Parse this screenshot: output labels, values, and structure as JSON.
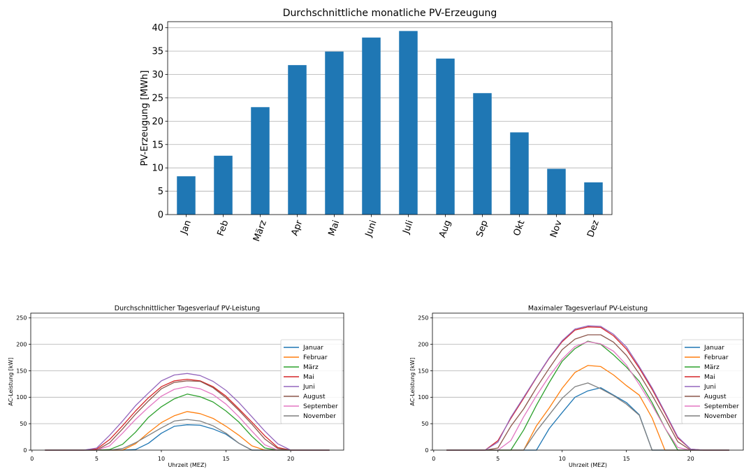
{
  "chart_data": [
    {
      "type": "bar",
      "title": "Durchschnittliche monatliche PV-Erzeugung",
      "ylabel": "PV-Erzeugung [MWh]",
      "categories": [
        "Jan",
        "Feb",
        "März",
        "Apr",
        "Mai",
        "Juni",
        "Juli",
        "Aug",
        "Sep",
        "Okt",
        "Nov",
        "Dez"
      ],
      "values": [
        8.2,
        12.6,
        23.0,
        32.0,
        34.9,
        37.9,
        39.3,
        33.4,
        26.0,
        17.6,
        9.8,
        6.9
      ],
      "ylim": [
        0,
        41.3
      ],
      "yticks": [
        0,
        5,
        10,
        15,
        20,
        25,
        30,
        35,
        40
      ],
      "grid": "horizontal",
      "color": "#1f77b4"
    },
    {
      "type": "line",
      "title": "Durchschnittlicher Tagesverlauf PV-Leistung",
      "xlabel": "Uhrzeit (MEZ)",
      "ylabel": "AC-Leistung [kW]",
      "x": [
        1,
        2,
        3,
        4,
        5,
        6,
        7,
        8,
        9,
        10,
        11,
        12,
        13,
        14,
        15,
        16,
        17,
        18,
        19,
        20,
        21,
        22,
        23
      ],
      "xlim": [
        -0.1,
        24.1
      ],
      "xticks": [
        0,
        5,
        10,
        15,
        20
      ],
      "ylim": [
        0,
        259
      ],
      "yticks": [
        0,
        50,
        100,
        150,
        200,
        250
      ],
      "grid": "horizontal",
      "legend": "center right",
      "series": [
        {
          "name": "Januar",
          "color": "#1f77b4",
          "values": [
            0,
            0,
            0,
            0,
            0,
            0,
            0,
            1,
            13,
            32,
            45,
            48,
            47,
            40,
            30,
            13,
            0,
            0,
            0,
            0,
            0,
            0,
            0
          ]
        },
        {
          "name": "Februar",
          "color": "#ff7f0e",
          "values": [
            0,
            0,
            0,
            0,
            0,
            0,
            0,
            12,
            33,
            52,
            65,
            73,
            69,
            60,
            45,
            28,
            8,
            0,
            0,
            0,
            0,
            0,
            0
          ]
        },
        {
          "name": "März",
          "color": "#2ca02c",
          "values": [
            0,
            0,
            0,
            0,
            0,
            1,
            11,
            34,
            62,
            82,
            97,
            106,
            101,
            91,
            74,
            53,
            26,
            4,
            0,
            0,
            0,
            0,
            0
          ]
        },
        {
          "name": "Mai",
          "color": "#d62728",
          "values": [
            0,
            0,
            0,
            0,
            2,
            20,
            46,
            74,
            99,
            120,
            131,
            134,
            131,
            120,
            102,
            78,
            53,
            27,
            5,
            0,
            0,
            0,
            0
          ]
        },
        {
          "name": "Juni",
          "color": "#9467bd",
          "values": [
            0,
            0,
            0,
            0,
            4,
            28,
            55,
            84,
            108,
            131,
            142,
            145,
            141,
            130,
            113,
            90,
            63,
            36,
            12,
            0,
            0,
            0,
            0
          ]
        },
        {
          "name": "August",
          "color": "#8c564b",
          "values": [
            0,
            0,
            0,
            0,
            0,
            14,
            40,
            68,
            93,
            116,
            128,
            131,
            130,
            118,
            99,
            75,
            49,
            21,
            3,
            0,
            0,
            0,
            0
          ]
        },
        {
          "name": "September",
          "color": "#e377c2",
          "values": [
            0,
            0,
            0,
            0,
            0,
            8,
            32,
            58,
            81,
            102,
            115,
            120,
            116,
            105,
            87,
            63,
            36,
            10,
            0,
            0,
            0,
            0,
            0
          ]
        },
        {
          "name": "November",
          "color": "#7f7f7f",
          "values": [
            0,
            0,
            0,
            0,
            0,
            0,
            3,
            14,
            28,
            42,
            55,
            58,
            55,
            46,
            32,
            13,
            0,
            0,
            0,
            0,
            0,
            0,
            0
          ]
        }
      ]
    },
    {
      "type": "line",
      "title": "Maximaler Tagesverlauf PV-Leistung",
      "xlabel": "Uhrzeit (MEZ)",
      "ylabel": "AC-Leistung [kW]",
      "x": [
        1,
        2,
        3,
        4,
        5,
        6,
        7,
        8,
        9,
        10,
        11,
        12,
        13,
        14,
        15,
        16,
        17,
        18,
        19,
        20,
        21,
        22,
        23
      ],
      "xlim": [
        -0.1,
        24.1
      ],
      "xticks": [
        0,
        5,
        10,
        15,
        20
      ],
      "ylim": [
        0,
        259
      ],
      "yticks": [
        0,
        50,
        100,
        150,
        200,
        250
      ],
      "grid": "horizontal",
      "legend": "center right",
      "series": [
        {
          "name": "Januar",
          "color": "#1f77b4",
          "values": [
            0,
            0,
            0,
            0,
            0,
            0,
            0,
            0,
            41,
            71,
            100,
            112,
            118,
            104,
            90,
            67,
            0,
            0,
            0,
            0,
            0,
            0,
            0
          ]
        },
        {
          "name": "Februar",
          "color": "#ff7f0e",
          "values": [
            0,
            0,
            0,
            0,
            0,
            0,
            0,
            46,
            80,
            117,
            147,
            160,
            158,
            142,
            122,
            104,
            61,
            0,
            0,
            0,
            0,
            0,
            0
          ]
        },
        {
          "name": "März",
          "color": "#2ca02c",
          "values": [
            0,
            0,
            0,
            0,
            0,
            0,
            38,
            85,
            128,
            168,
            192,
            206,
            200,
            180,
            157,
            130,
            90,
            42,
            0,
            0,
            0,
            0,
            0
          ]
        },
        {
          "name": "Mai",
          "color": "#d62728",
          "values": [
            0,
            0,
            0,
            0,
            18,
            60,
            98,
            137,
            174,
            205,
            227,
            233,
            232,
            216,
            191,
            155,
            115,
            70,
            23,
            2,
            0,
            0,
            0
          ]
        },
        {
          "name": "Juni",
          "color": "#9467bd",
          "values": [
            0,
            0,
            0,
            0,
            15,
            62,
            100,
            138,
            175,
            207,
            229,
            235,
            234,
            219,
            195,
            158,
            118,
            72,
            25,
            2,
            0,
            0,
            0
          ]
        },
        {
          "name": "August",
          "color": "#8c564b",
          "values": [
            0,
            0,
            0,
            0,
            4,
            45,
            78,
            118,
            155,
            190,
            210,
            218,
            218,
            204,
            179,
            144,
            104,
            61,
            16,
            0,
            0,
            0,
            0
          ]
        },
        {
          "name": "September",
          "color": "#e377c2",
          "values": [
            0,
            0,
            0,
            0,
            0,
            18,
            63,
            103,
            140,
            172,
            196,
            205,
            201,
            187,
            161,
            124,
            85,
            42,
            5,
            0,
            0,
            0,
            0
          ]
        },
        {
          "name": "November",
          "color": "#7f7f7f",
          "values": [
            0,
            0,
            0,
            0,
            0,
            0,
            0,
            36,
            67,
            98,
            120,
            127,
            116,
            103,
            87,
            66,
            0,
            0,
            0,
            0,
            0,
            0,
            0
          ]
        }
      ]
    }
  ]
}
